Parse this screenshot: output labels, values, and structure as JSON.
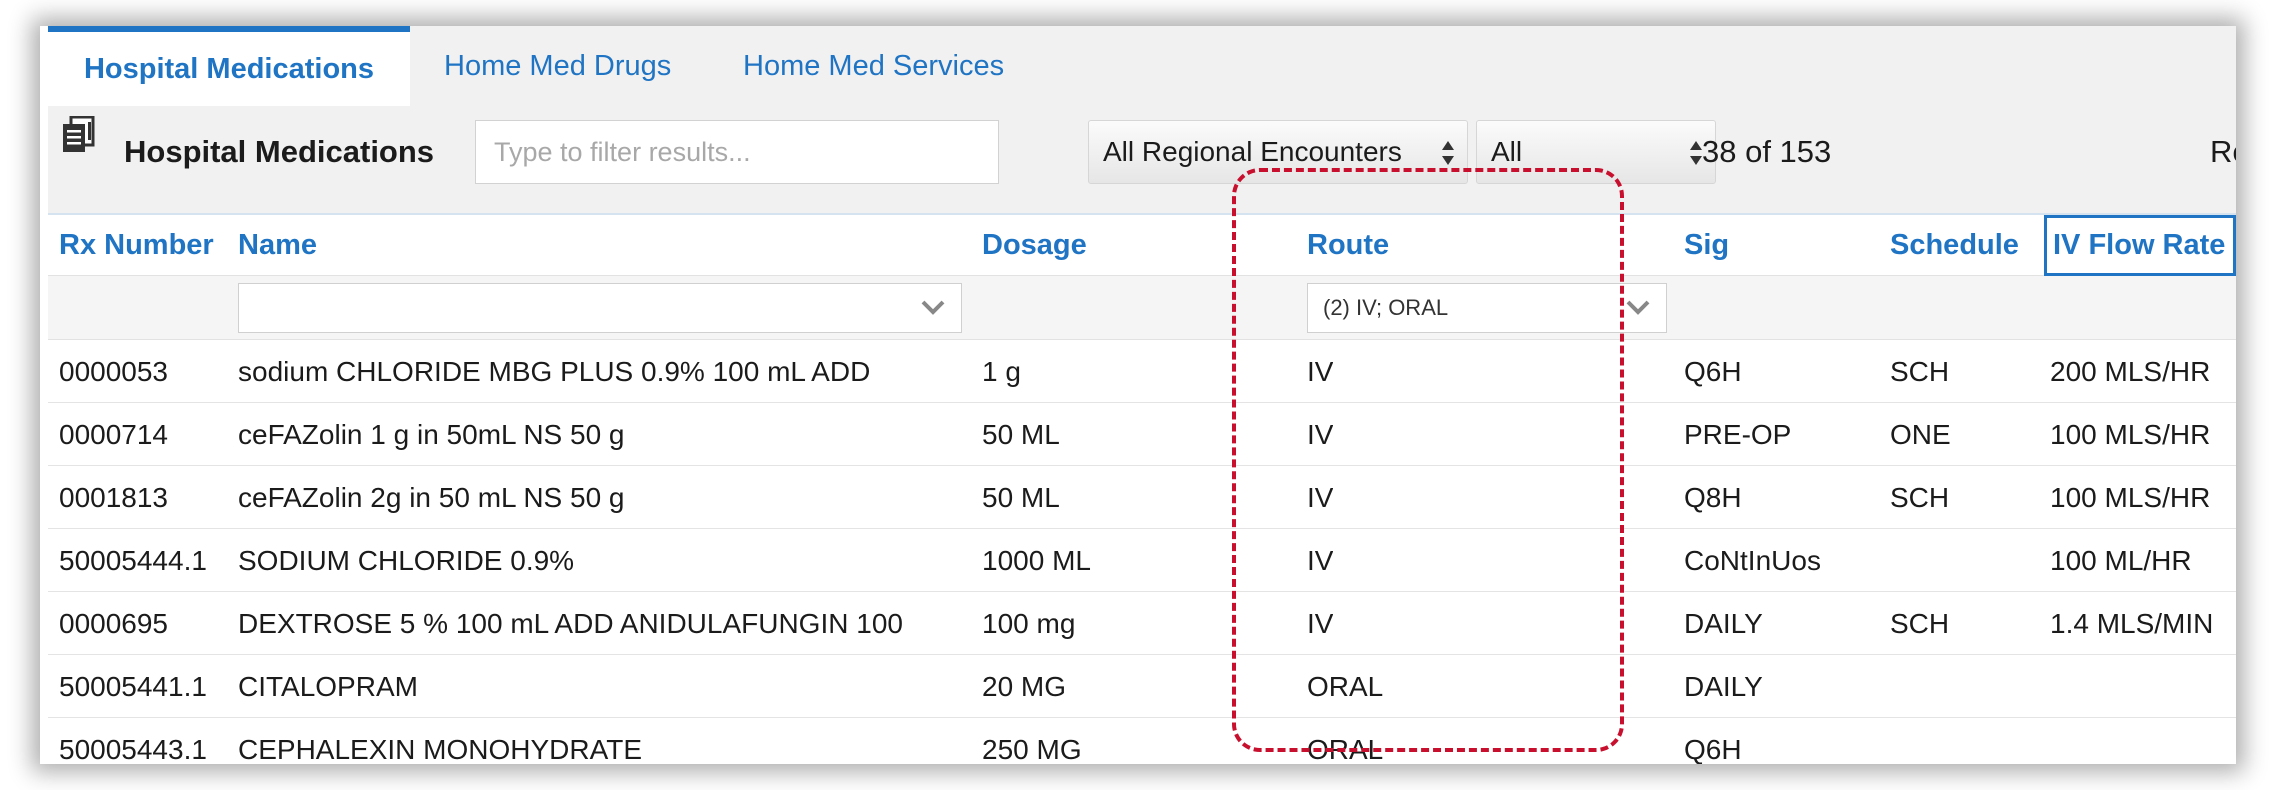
{
  "tabs": [
    {
      "label": "Hospital Medications",
      "active": true
    },
    {
      "label": "Home Med Drugs",
      "active": false
    },
    {
      "label": "Home Med Services",
      "active": false
    }
  ],
  "toolbar": {
    "icon": "document-stack-icon",
    "title": "Hospital Medications",
    "filter_placeholder": "Type to filter results...",
    "filter_value": "",
    "encounter_select": "All Regional Encounters",
    "status_select": "All",
    "count": "38 of 153",
    "right_truncated": "Re"
  },
  "table": {
    "columns": [
      "Rx Number",
      "Name",
      "Dosage",
      "Route",
      "Sig",
      "Schedule",
      "IV Flow Rate"
    ],
    "column_filters": {
      "name": "",
      "route": "(2) IV; ORAL"
    },
    "rows": [
      {
        "rx": "0000053",
        "name": "sodium CHLORIDE MBG PLUS 0.9% 100 mL ADD",
        "dosage": "1 g",
        "route": "IV",
        "sig": "Q6H",
        "schedule": "SCH",
        "flow": "200 MLS/HR"
      },
      {
        "rx": "0000714",
        "name": "ceFAZolin 1 g in 50mL NS 50 g",
        "dosage": "50 ML",
        "route": "IV",
        "sig": "PRE-OP",
        "schedule": "ONE",
        "flow": "100 MLS/HR"
      },
      {
        "rx": "0001813",
        "name": "ceFAZolin 2g in 50 mL NS 50 g",
        "dosage": "50 ML",
        "route": "IV",
        "sig": "Q8H",
        "schedule": "SCH",
        "flow": "100 MLS/HR"
      },
      {
        "rx": "50005444.1",
        "name": "SODIUM CHLORIDE 0.9%",
        "dosage": "1000 ML",
        "route": "IV",
        "sig": "CoNtInUos",
        "schedule": "",
        "flow": "100 ML/HR"
      },
      {
        "rx": "0000695",
        "name": "DEXTROSE 5 % 100 mL ADD ANIDULAFUNGIN 100",
        "dosage": "100 mg",
        "route": "IV",
        "sig": "DAILY",
        "schedule": "SCH",
        "flow": "1.4 MLS/MIN"
      },
      {
        "rx": "50005441.1",
        "name": "CITALOPRAM",
        "dosage": "20 MG",
        "route": "ORAL",
        "sig": "DAILY",
        "schedule": "",
        "flow": ""
      },
      {
        "rx": "50005443.1",
        "name": "CEPHALEXIN MONOHYDRATE",
        "dosage": "250 MG",
        "route": "ORAL",
        "sig": "Q6H",
        "schedule": "",
        "flow": ""
      }
    ]
  },
  "colors": {
    "accent": "#1f74c4",
    "highlight": "#c8102e",
    "toolbar_bg": "#f1f1f1"
  }
}
